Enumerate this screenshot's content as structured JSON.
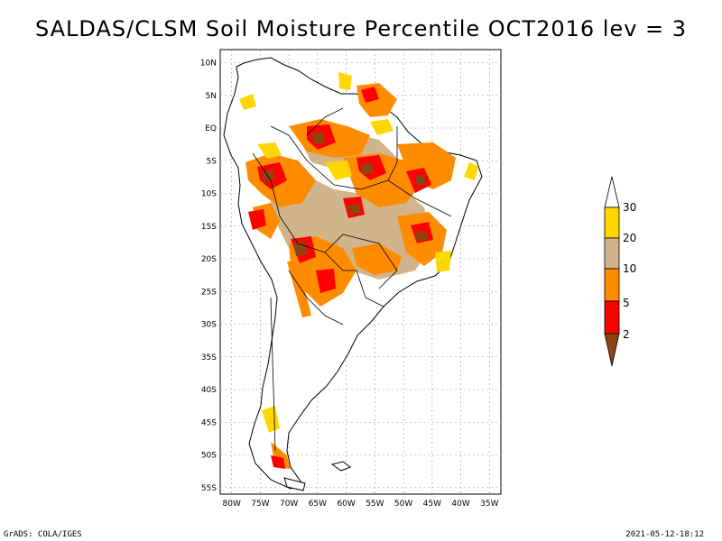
{
  "title": "SALDAS/CLSM Soil Moisture Percentile OCT2016 lev = 3",
  "footer": {
    "left": "GrADS: COLA/IGES",
    "right": "2021-05-12-18:12"
  },
  "map": {
    "lat_labels": [
      "10N",
      "5N",
      "EQ",
      "5S",
      "10S",
      "15S",
      "20S",
      "25S",
      "30S",
      "35S",
      "40S",
      "45S",
      "50S",
      "55S"
    ],
    "lon_labels": [
      "80W",
      "75W",
      "70W",
      "65W",
      "60W",
      "55W",
      "50W",
      "45W",
      "40W",
      "35W"
    ]
  },
  "legend": {
    "labels": [
      "30",
      "20",
      "10",
      "5",
      "2"
    ],
    "colors": {
      "above30": "#ffffff",
      "20to30": "#ffd700",
      "10to20": "#d2b48c",
      "5to10": "#ff8c00",
      "2to5": "#ff0000",
      "below2": "#8b4513"
    }
  },
  "colors": {
    "land_outline": "#000000",
    "grid": "#999999"
  }
}
